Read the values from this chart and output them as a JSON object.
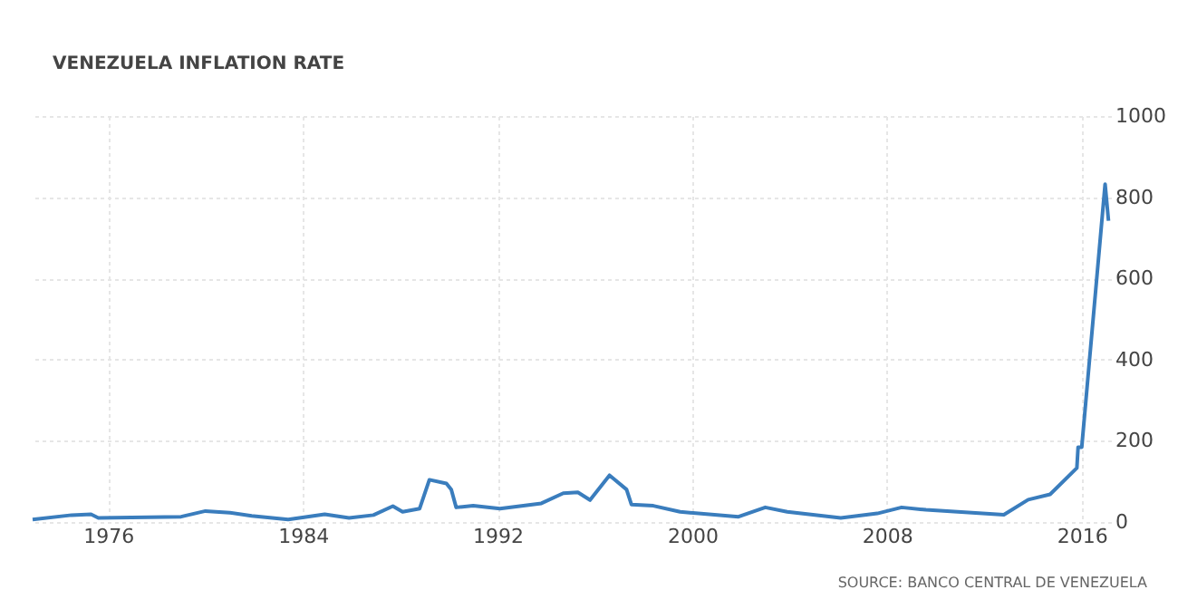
{
  "chart_data": {
    "type": "line",
    "title": "VENEZUELA INFLATION RATE",
    "annotations": [
      "SOURCE: BANCO CENTRAL DE VENEZUELA"
    ],
    "x": [
      1972.9,
      1974.5,
      1975.3,
      1975.6,
      1979,
      1980,
      1981,
      1981.9,
      1983.4,
      1984.9,
      1985.9,
      1986.9,
      1987.7,
      1988.1,
      1988.8,
      1989.2,
      1989.9,
      1990.1,
      1990.3,
      1991,
      1992.1,
      1993.8,
      1994.7,
      1995.3,
      1995.8,
      1996.6,
      1997.3,
      1997.5,
      1998.4,
      1999.5,
      2001.9,
      2003,
      2003.9,
      2006.1,
      2007.6,
      2008.6,
      2009.6,
      2012.8,
      2013.8,
      2014.7,
      2015.8,
      2015.85,
      2016,
      2016.96,
      2017.1
    ],
    "series": [
      {
        "color": "#3a7dbd",
        "values": [
          6,
          17,
          19,
          10,
          13,
          27,
          23,
          15,
          6,
          19,
          10,
          17,
          39,
          25,
          33,
          104,
          95,
          80,
          36,
          40,
          33,
          46,
          71,
          73,
          54,
          115,
          80,
          43,
          40,
          25,
          13,
          36,
          25,
          10,
          21,
          36,
          30,
          18,
          55,
          68,
          133,
          184,
          184,
          832,
          742
        ]
      }
    ],
    "xlim": [
      1972.9,
      2017.2
    ],
    "xticks": [
      1976,
      1984,
      1992,
      2000,
      2008,
      2016
    ],
    "ylim": [
      0,
      1000
    ],
    "yticks": [
      0,
      200,
      400,
      600,
      800,
      1000
    ],
    "grid": true,
    "marker": "none",
    "line_style": "solid"
  }
}
